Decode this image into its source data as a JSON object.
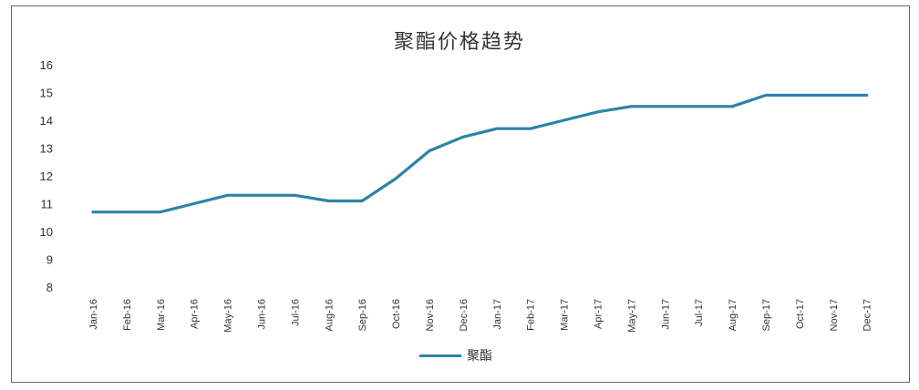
{
  "chart_data": {
    "type": "line",
    "title": "聚酯价格趋势",
    "xlabel": "",
    "ylabel": "",
    "ylim": [
      8,
      16
    ],
    "yticks": [
      8,
      9,
      10,
      11,
      12,
      13,
      14,
      15,
      16
    ],
    "grid": false,
    "legend_position": "bottom",
    "categories": [
      "Jan-16",
      "Feb-16",
      "Mar-16",
      "Apr-16",
      "May-16",
      "Jun-16",
      "Jul-16",
      "Aug-16",
      "Sep-16",
      "Oct-16",
      "Nov-16",
      "Dec-16",
      "Jan-17",
      "Feb-17",
      "Mar-17",
      "Apr-17",
      "May-17",
      "Jun-17",
      "Jul-17",
      "Aug-17",
      "Sep-17",
      "Oct-17",
      "Nov-17",
      "Dec-17"
    ],
    "series": [
      {
        "name": "聚酯",
        "color": "#2e82a8",
        "values": [
          10.7,
          10.7,
          10.7,
          11.0,
          11.3,
          11.3,
          11.3,
          11.1,
          11.1,
          11.9,
          12.9,
          13.4,
          13.7,
          13.7,
          14.0,
          14.3,
          14.5,
          14.5,
          14.5,
          14.5,
          14.9,
          14.9,
          14.9,
          14.9
        ]
      }
    ]
  }
}
